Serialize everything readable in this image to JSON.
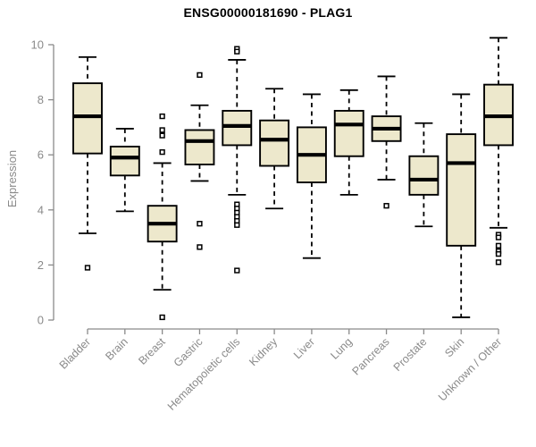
{
  "chart_data": {
    "type": "boxplot",
    "title": "ENSG00000181690 - PLAG1",
    "ylabel": "Expression",
    "xlabel": "",
    "ylim": [
      0,
      10
    ],
    "yticks": [
      0,
      2,
      4,
      6,
      8,
      10
    ],
    "grid": false,
    "legend": "none",
    "box_fill_color": "#EDE8CC",
    "box_stroke_color": "#000000",
    "axis_color": "#8a8a8a",
    "tick_label_color": "#8a8a8a",
    "title_color": "#000000",
    "categories": [
      "Bladder",
      "Brain",
      "Breast",
      "Gastric",
      "Hematopoietic cells",
      "Kidney",
      "Liver",
      "Lung",
      "Pancreas",
      "Prostate",
      "Skin",
      "Unknown / Other"
    ],
    "series": [
      {
        "name": "Bladder",
        "whisker_low": 3.15,
        "q1": 6.05,
        "median": 7.4,
        "q3": 8.6,
        "whisker_high": 9.55,
        "outliers": [
          1.9
        ]
      },
      {
        "name": "Brain",
        "whisker_low": 3.95,
        "q1": 5.25,
        "median": 5.9,
        "q3": 6.3,
        "whisker_high": 6.95,
        "outliers": []
      },
      {
        "name": "Breast",
        "whisker_low": 1.1,
        "q1": 2.85,
        "median": 3.5,
        "q3": 4.15,
        "whisker_high": 5.7,
        "outliers": [
          7.4,
          6.9,
          6.7,
          6.1,
          0.1
        ]
      },
      {
        "name": "Gastric",
        "whisker_low": 5.05,
        "q1": 5.65,
        "median": 6.5,
        "q3": 6.9,
        "whisker_high": 7.8,
        "outliers": [
          8.9,
          3.5,
          2.65
        ]
      },
      {
        "name": "Hematopoietic cells",
        "whisker_low": 4.55,
        "q1": 6.35,
        "median": 7.05,
        "q3": 7.6,
        "whisker_high": 9.45,
        "outliers": [
          9.85,
          9.75,
          4.2,
          4.05,
          3.9,
          3.75,
          3.6,
          3.45,
          1.8
        ]
      },
      {
        "name": "Kidney",
        "whisker_low": 4.05,
        "q1": 5.6,
        "median": 6.55,
        "q3": 7.25,
        "whisker_high": 8.4,
        "outliers": []
      },
      {
        "name": "Liver",
        "whisker_low": 2.25,
        "q1": 5.0,
        "median": 6.0,
        "q3": 7.0,
        "whisker_high": 8.2,
        "outliers": []
      },
      {
        "name": "Lung",
        "whisker_low": 4.55,
        "q1": 5.95,
        "median": 7.1,
        "q3": 7.6,
        "whisker_high": 8.35,
        "outliers": []
      },
      {
        "name": "Pancreas",
        "whisker_low": 5.1,
        "q1": 6.5,
        "median": 6.95,
        "q3": 7.4,
        "whisker_high": 8.85,
        "outliers": [
          4.15
        ]
      },
      {
        "name": "Prostate",
        "whisker_low": 3.4,
        "q1": 4.55,
        "median": 5.1,
        "q3": 5.95,
        "whisker_high": 7.15,
        "outliers": []
      },
      {
        "name": "Skin",
        "whisker_low": 0.1,
        "q1": 2.7,
        "median": 5.7,
        "q3": 6.75,
        "whisker_high": 8.2,
        "outliers": []
      },
      {
        "name": "Unknown / Other",
        "whisker_low": 3.35,
        "q1": 6.35,
        "median": 7.4,
        "q3": 8.55,
        "whisker_high": 10.25,
        "outliers": [
          3.1,
          3.0,
          2.7,
          2.5,
          2.4,
          2.1
        ]
      }
    ]
  }
}
